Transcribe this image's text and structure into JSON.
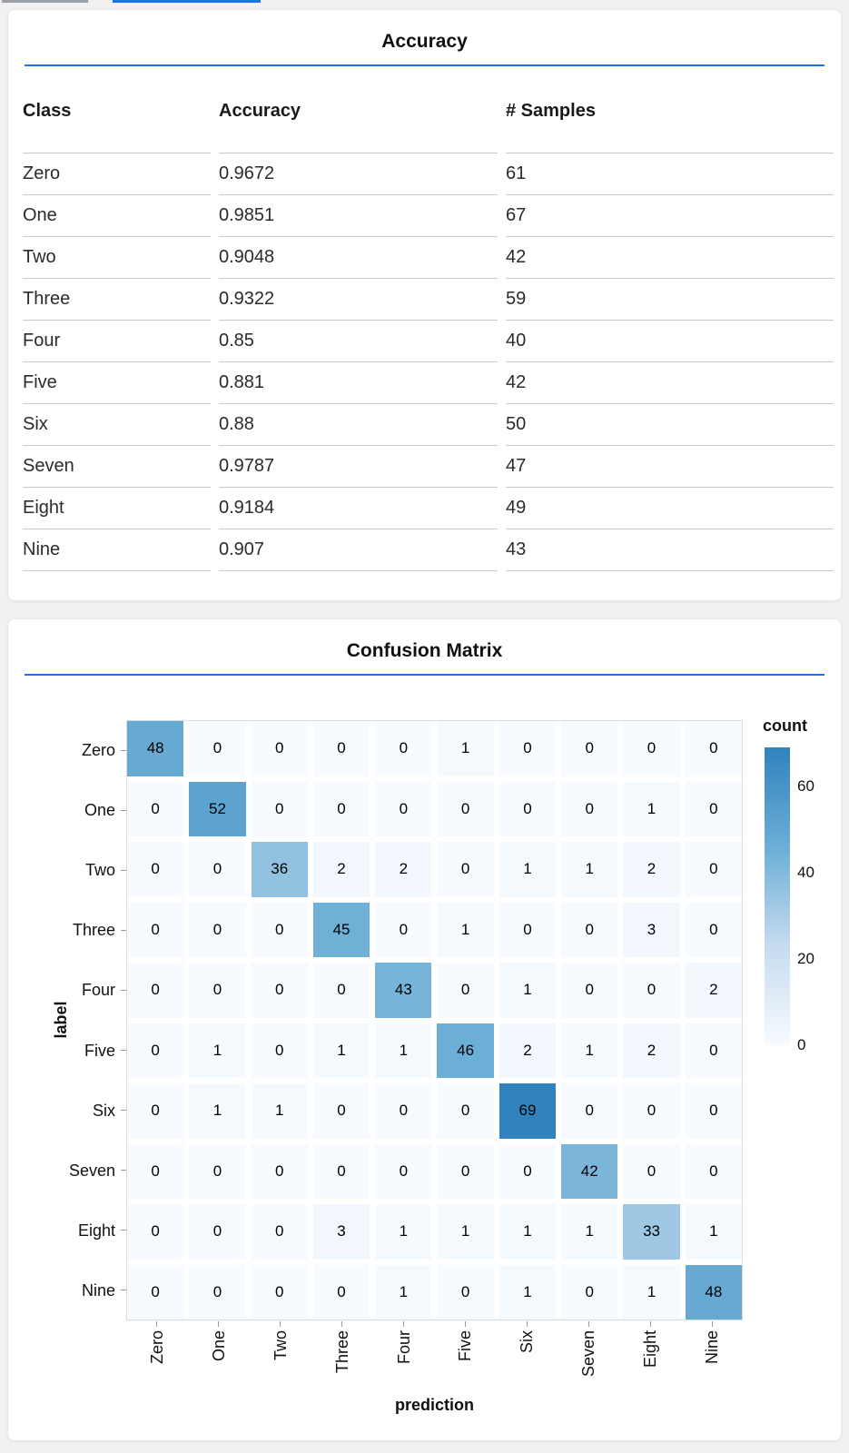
{
  "top_bars": {
    "gray_color": "#9aa0a6",
    "blue_color": "#1a73e8"
  },
  "accent_blue": "#1a73e8",
  "accuracy_card": {
    "title": "Accuracy",
    "table": {
      "headers": [
        "Class",
        "Accuracy",
        "# Samples"
      ],
      "rows": [
        [
          "Zero",
          "0.9672",
          "61"
        ],
        [
          "One",
          "0.9851",
          "67"
        ],
        [
          "Two",
          "0.9048",
          "42"
        ],
        [
          "Three",
          "0.9322",
          "59"
        ],
        [
          "Four",
          "0.85",
          "40"
        ],
        [
          "Five",
          "0.881",
          "42"
        ],
        [
          "Six",
          "0.88",
          "50"
        ],
        [
          "Seven",
          "0.9787",
          "47"
        ],
        [
          "Eight",
          "0.9184",
          "49"
        ],
        [
          "Nine",
          "0.907",
          "43"
        ]
      ]
    }
  },
  "confusion_card": {
    "title": "Confusion Matrix",
    "chart_data": {
      "type": "heatmap",
      "title": "Confusion Matrix",
      "xlabel": "prediction",
      "ylabel": "label",
      "x_categories": [
        "Zero",
        "One",
        "Two",
        "Three",
        "Four",
        "Five",
        "Six",
        "Seven",
        "Eight",
        "Nine"
      ],
      "y_categories": [
        "Zero",
        "One",
        "Two",
        "Three",
        "Four",
        "Five",
        "Six",
        "Seven",
        "Eight",
        "Nine"
      ],
      "matrix": [
        [
          48,
          0,
          0,
          0,
          0,
          1,
          0,
          0,
          0,
          0
        ],
        [
          0,
          52,
          0,
          0,
          0,
          0,
          0,
          0,
          1,
          0
        ],
        [
          0,
          0,
          36,
          2,
          2,
          0,
          1,
          1,
          2,
          0
        ],
        [
          0,
          0,
          0,
          45,
          0,
          1,
          0,
          0,
          3,
          0
        ],
        [
          0,
          0,
          0,
          0,
          43,
          0,
          1,
          0,
          0,
          2
        ],
        [
          0,
          1,
          0,
          1,
          1,
          46,
          2,
          1,
          2,
          0
        ],
        [
          0,
          1,
          1,
          0,
          0,
          0,
          69,
          0,
          0,
          0
        ],
        [
          0,
          0,
          0,
          0,
          0,
          0,
          0,
          42,
          0,
          0
        ],
        [
          0,
          0,
          0,
          3,
          1,
          1,
          1,
          1,
          33,
          1
        ],
        [
          0,
          0,
          0,
          0,
          1,
          0,
          1,
          0,
          1,
          48
        ]
      ],
      "legend": {
        "title": "count",
        "ticks": [
          0,
          20,
          40,
          60
        ],
        "domain": [
          0,
          69
        ],
        "position": "right"
      },
      "color_scale": [
        "#f7fbff",
        "#c6dbef",
        "#6baed6",
        "#3182bd"
      ],
      "grid": false
    }
  }
}
